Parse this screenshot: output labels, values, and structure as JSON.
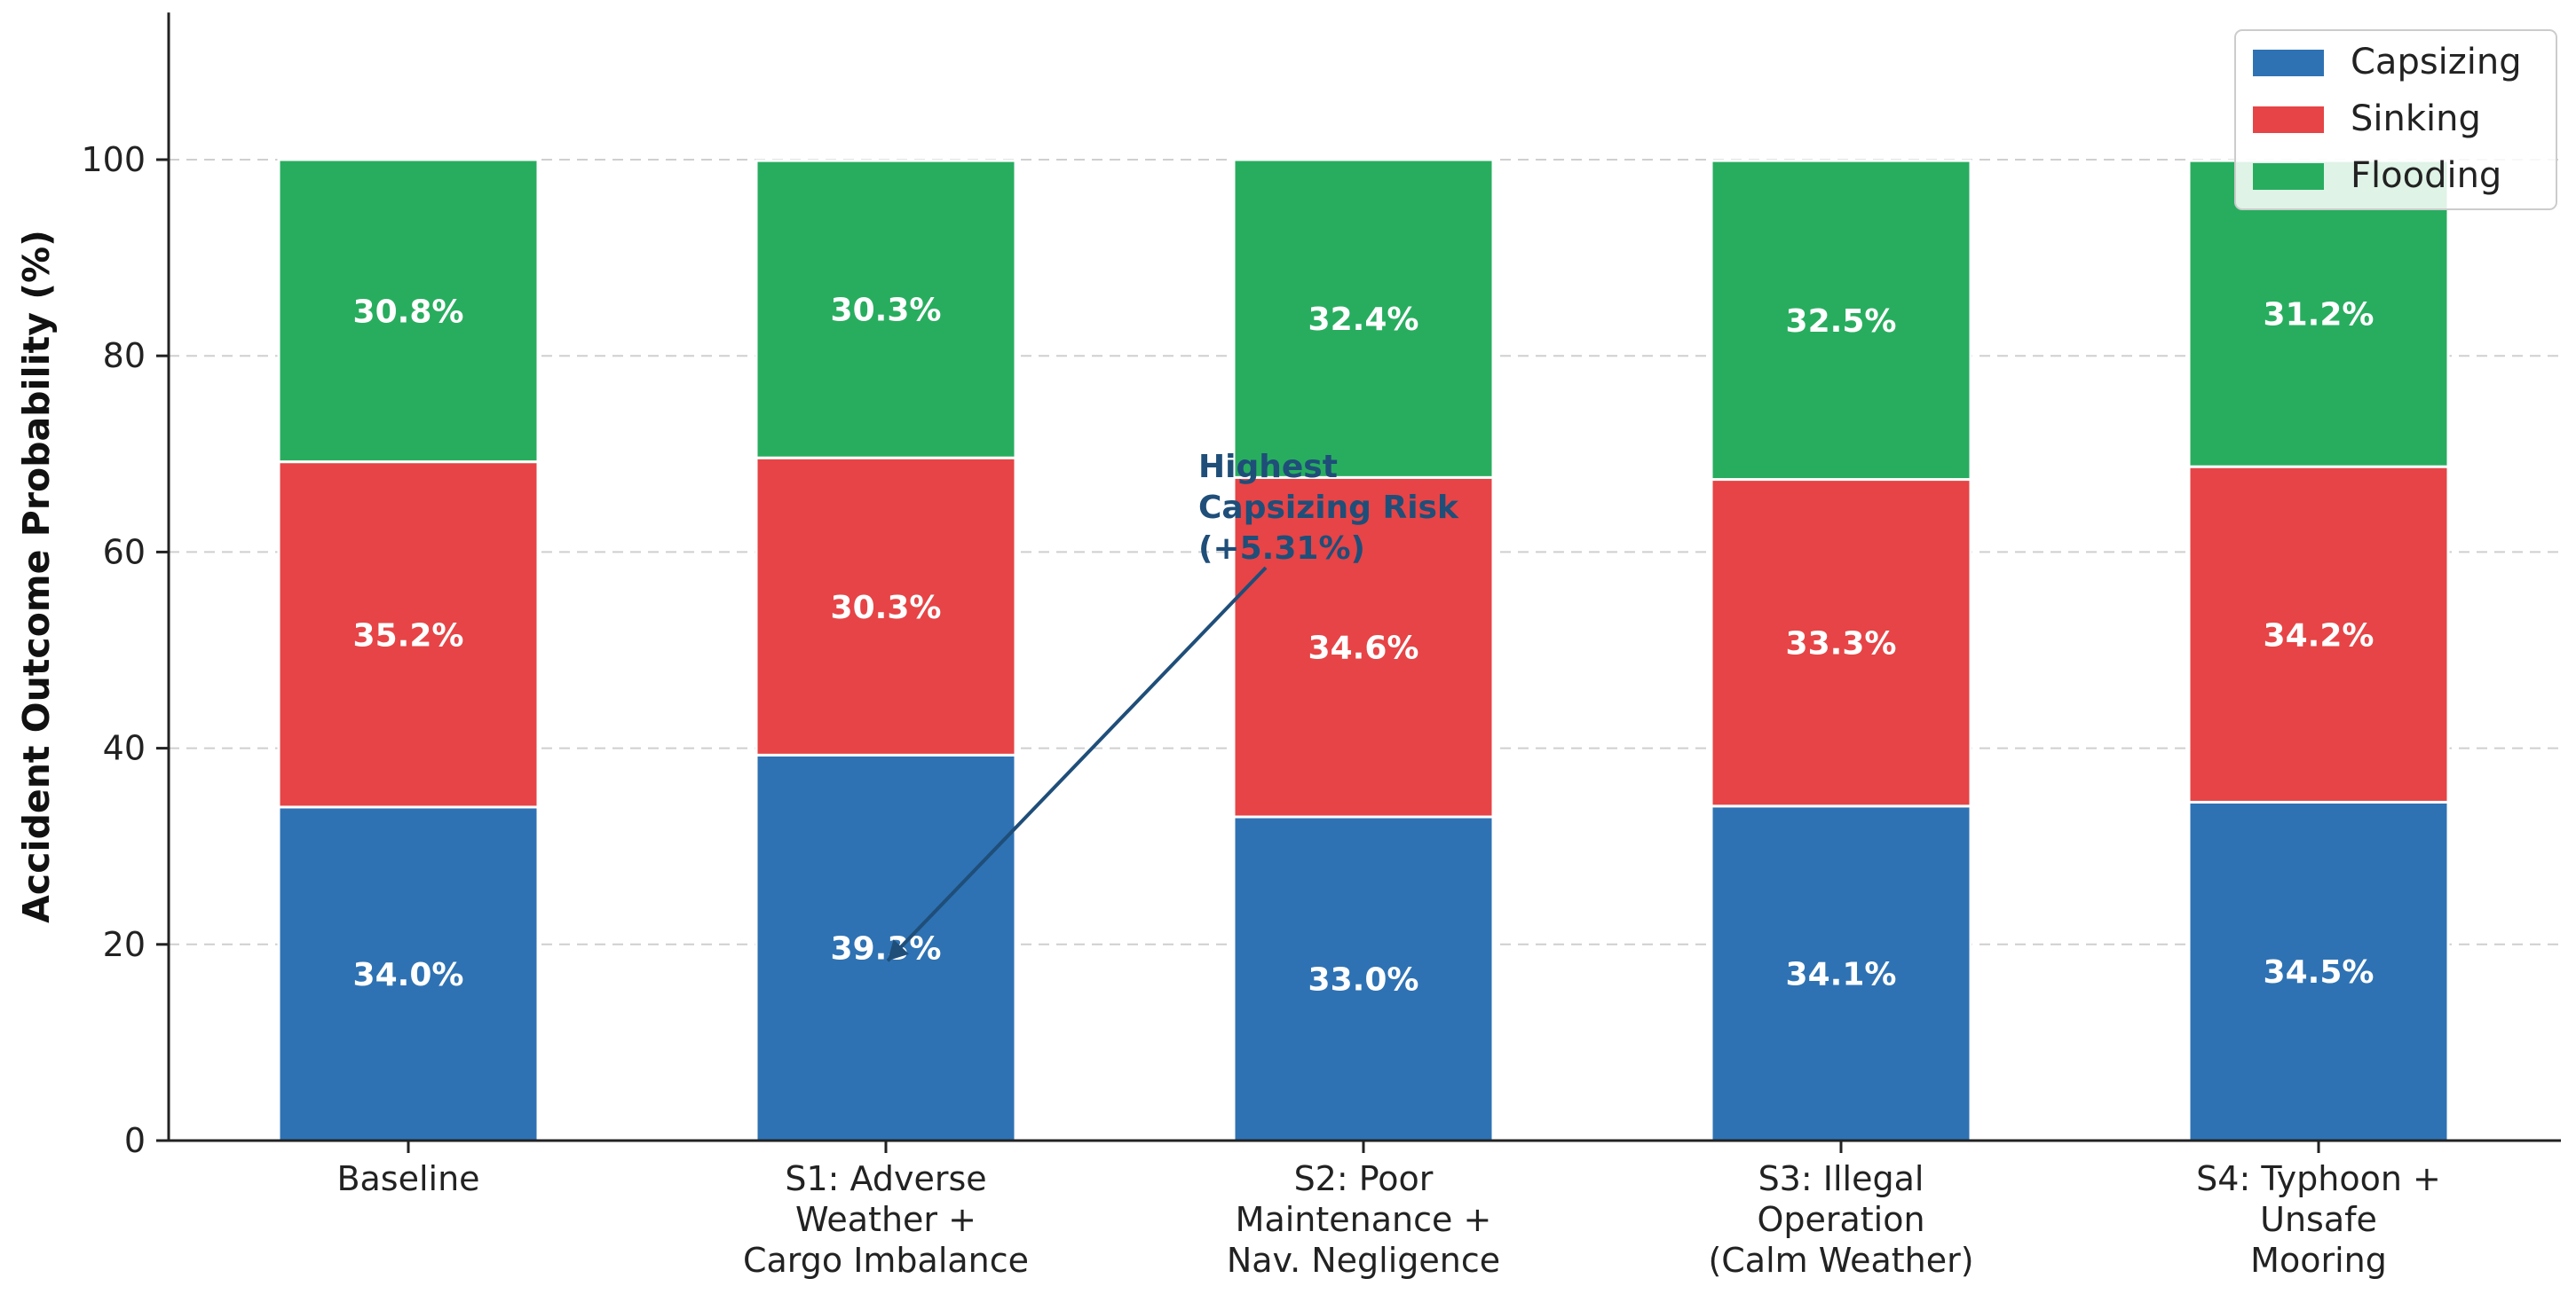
{
  "chart_data": {
    "type": "bar",
    "stacked": true,
    "title": "",
    "xlabel": "",
    "ylabel": "Accident Outcome Probability (%)",
    "ylim": [
      0,
      115
    ],
    "yticks": [
      0,
      20,
      40,
      60,
      80,
      100
    ],
    "grid": "y dashed",
    "legend_position": "top-right",
    "categories": [
      [
        "Baseline"
      ],
      [
        "S1: Adverse",
        "Weather +",
        "Cargo Imbalance"
      ],
      [
        "S2: Poor",
        "Maintenance +",
        "Nav. Negligence"
      ],
      [
        "S3: Illegal",
        "Operation",
        "(Calm Weather)"
      ],
      [
        "S4: Typhoon +",
        "Unsafe",
        "Mooring"
      ]
    ],
    "series": [
      {
        "name": "Capsizing",
        "color": "#2e72b3",
        "values": [
          34.0,
          39.3,
          33.0,
          34.1,
          34.5
        ],
        "labels": [
          "34.0%",
          "39.3%",
          "33.0%",
          "34.1%",
          "34.5%"
        ]
      },
      {
        "name": "Sinking",
        "color": "#e64446",
        "values": [
          35.2,
          30.3,
          34.6,
          33.3,
          34.2
        ],
        "labels": [
          "35.2%",
          "30.3%",
          "34.6%",
          "33.3%",
          "34.2%"
        ]
      },
      {
        "name": "Flooding",
        "color": "#28ad5f",
        "values": [
          30.8,
          30.3,
          32.4,
          32.5,
          31.2
        ],
        "labels": [
          "30.8%",
          "30.3%",
          "32.4%",
          "32.5%",
          "31.2%"
        ]
      }
    ],
    "annotation": {
      "lines": [
        "Highest",
        "Capsizing Risk",
        "(+5.31%)"
      ],
      "target_category_index": 1,
      "target_value": 20.5,
      "text_value": 66.5,
      "color": "#1f4e79"
    }
  }
}
